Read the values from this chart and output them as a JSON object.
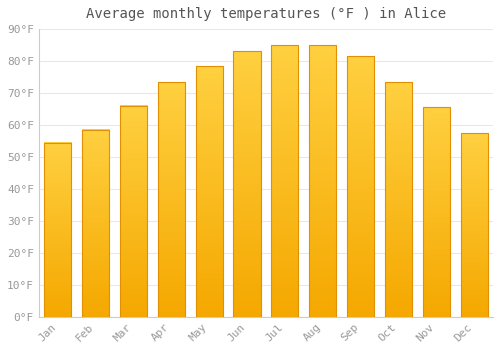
{
  "title": "Average monthly temperatures (°F ) in Alice",
  "months": [
    "Jan",
    "Feb",
    "Mar",
    "Apr",
    "May",
    "Jun",
    "Jul",
    "Aug",
    "Sep",
    "Oct",
    "Nov",
    "Dec"
  ],
  "values": [
    54.5,
    58.5,
    66.0,
    73.5,
    78.5,
    83.0,
    85.0,
    85.0,
    81.5,
    73.5,
    65.5,
    57.5
  ],
  "bar_color_bottom": "#F5A800",
  "bar_color_top": "#FFD040",
  "bar_edge_color": "#E09000",
  "ylim": [
    0,
    90
  ],
  "yticks": [
    0,
    10,
    20,
    30,
    40,
    50,
    60,
    70,
    80,
    90
  ],
  "ytick_labels": [
    "0°F",
    "10°F",
    "20°F",
    "30°F",
    "40°F",
    "50°F",
    "60°F",
    "70°F",
    "80°F",
    "90°F"
  ],
  "background_color": "#ffffff",
  "grid_color": "#e8e8e8",
  "title_fontsize": 10,
  "tick_fontsize": 8,
  "font_family": "monospace",
  "bar_width": 0.72
}
